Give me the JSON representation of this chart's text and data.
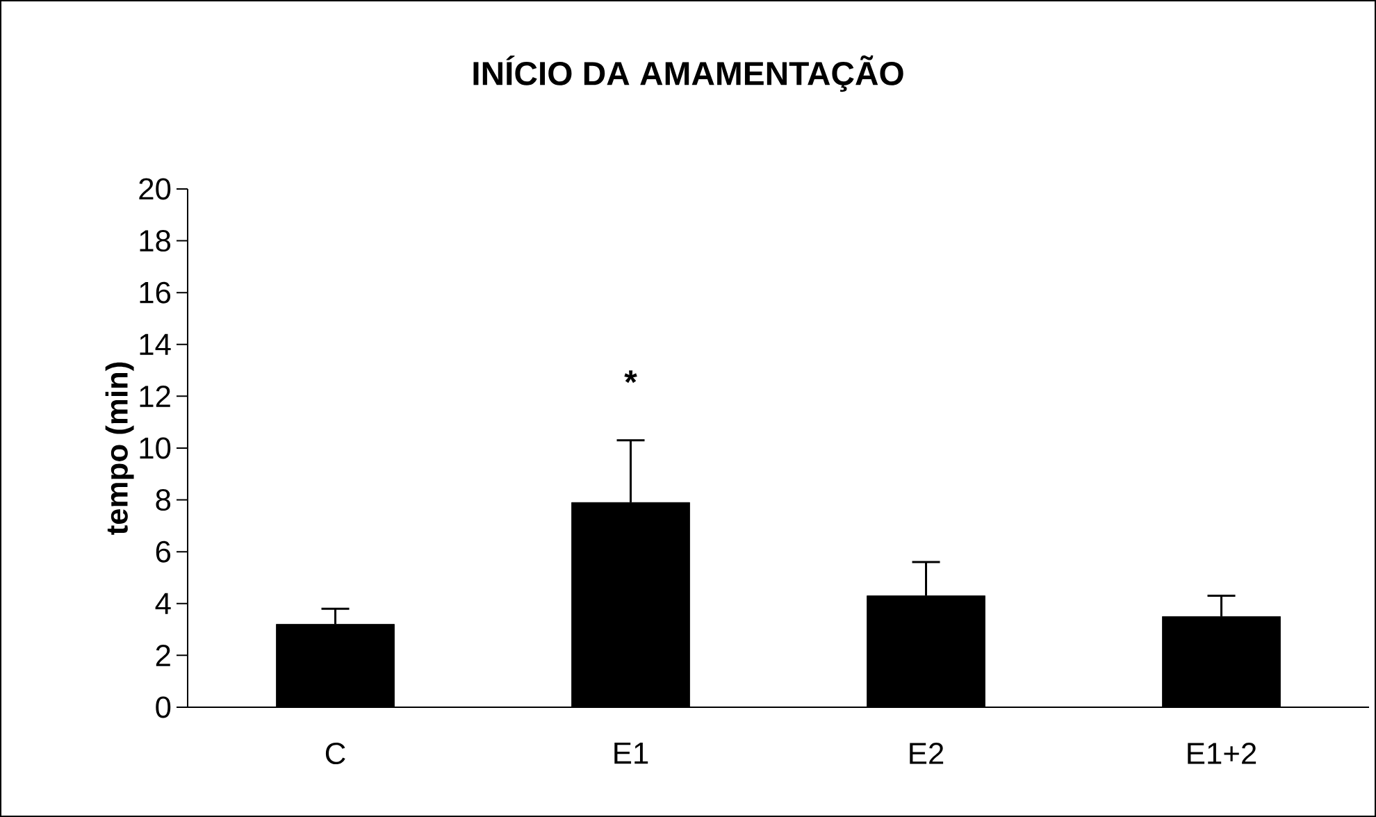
{
  "chart_data": {
    "type": "bar",
    "title": "INÍCIO DA AMAMENTAÇÃO",
    "ylabel": "tempo (min)",
    "categories": [
      "C",
      "E1",
      "E2",
      "E1+2"
    ],
    "values": [
      3.2,
      7.9,
      4.3,
      3.5
    ],
    "errors": [
      [
        3.2,
        3.8
      ],
      [
        7.9,
        10.3
      ],
      [
        4.3,
        5.6
      ],
      [
        3.5,
        4.3
      ]
    ],
    "color": "#000000",
    "ylim": [
      0,
      20
    ],
    "yticks": [
      0,
      2,
      4,
      6,
      8,
      10,
      12,
      14,
      16,
      18,
      20
    ],
    "annotations": [
      "*"
    ],
    "grid": false
  }
}
